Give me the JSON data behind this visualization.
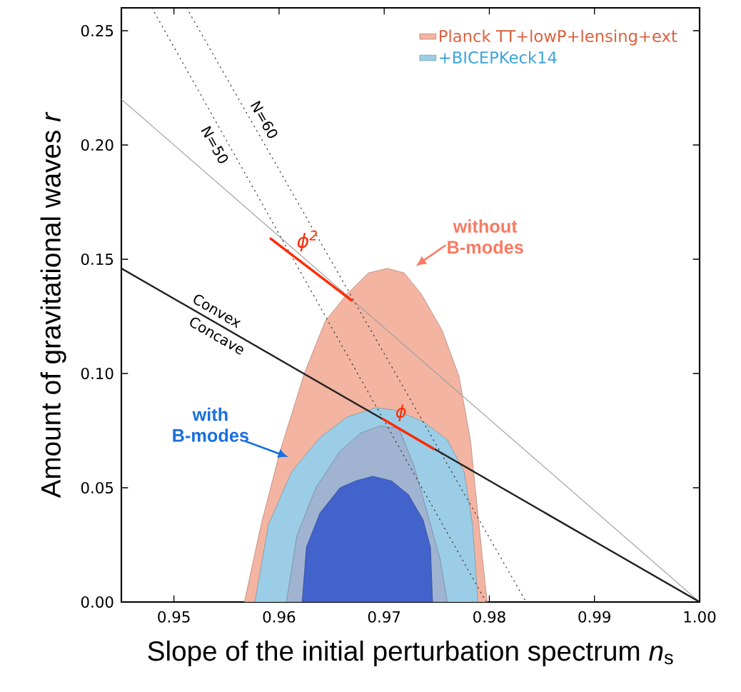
{
  "chart_data": {
    "type": "area",
    "xlabel": "Slope of the initial perturbation spectrum *n*$_{s}$",
    "ylabel": "Amount of gravitational waves *r*",
    "xlim": [
      0.945,
      1.0
    ],
    "ylim": [
      0,
      0.26
    ],
    "xticks": [
      0.95,
      0.96,
      0.97,
      0.98,
      0.99,
      {
        "value": 1.0,
        "label": "1.00"
      }
    ],
    "yticks": [
      {
        "value": 0,
        "label": "0.00"
      },
      0.05,
      {
        "value": 0.1,
        "label": "0.10"
      },
      0.15,
      {
        "value": 0.2,
        "label": "0.20"
      },
      0.25
    ],
    "legend": "top right",
    "series": [
      {
        "name": "Planck TT+lowP+lensing+ext",
        "color": "#f3b4a2",
        "x": [
          0.9567,
          0.9583,
          0.9601,
          0.9624,
          0.9644,
          0.9665,
          0.9685,
          0.9703,
          0.9719,
          0.9735,
          0.9755,
          0.9771,
          0.9782,
          0.9789,
          0.9796,
          0.9798
        ],
        "values": [
          0,
          0.034,
          0.066,
          0.1,
          0.123,
          0.135,
          0.144,
          0.146,
          0.144,
          0.135,
          0.119,
          0.099,
          0.071,
          0.039,
          0.008,
          0
        ]
      },
      {
        "name": "+BICEPKeck14",
        "color": "#9ccde6",
        "x": [
          0.9577,
          0.959,
          0.9612,
          0.9639,
          0.9665,
          0.9692,
          0.971,
          0.9737,
          0.976,
          0.9776,
          0.9784,
          0.9788,
          0.9789
        ],
        "values": [
          0,
          0.034,
          0.057,
          0.072,
          0.081,
          0.085,
          0.084,
          0.079,
          0.071,
          0.057,
          0.034,
          0.008,
          0
        ]
      },
      {
        "color": "#a0b4d2",
        "x": [
          0.9607,
          0.9617,
          0.9635,
          0.9658,
          0.9678,
          0.9696,
          0.9714,
          0.9728,
          0.9741,
          0.9753,
          0.976
        ],
        "values": [
          0,
          0.029,
          0.05,
          0.066,
          0.074,
          0.077,
          0.076,
          0.06,
          0.039,
          0.019,
          0
        ]
      },
      {
        "color": "#4263cc",
        "x": [
          0.9622,
          0.9626,
          0.9639,
          0.9658,
          0.9673,
          0.9689,
          0.9707,
          0.9723,
          0.9737,
          0.9744,
          0.9746
        ],
        "values": [
          0,
          0.024,
          0.039,
          0.05,
          0.053,
          0.055,
          0.053,
          0.047,
          0.036,
          0.024,
          0
        ]
      },
      {
        "type": "line",
        "color": "#a0a0a0",
        "line_style": "solid",
        "x": [
          0.945,
          1.0
        ],
        "values": [
          0.22,
          0
        ]
      },
      {
        "type": "line",
        "color": "#222222",
        "line_style": "solid",
        "x": [
          0.945,
          1.0
        ],
        "values": [
          0.146,
          0
        ]
      },
      {
        "type": "line",
        "color": "#333333",
        "line_style": "dotted",
        "x": [
          0.9479,
          0.9797
        ],
        "values": [
          0.26,
          0
        ]
      },
      {
        "type": "line",
        "color": "#333333",
        "line_style": "dotted",
        "x": [
          0.9512,
          0.9835
        ],
        "values": [
          0.26,
          0
        ]
      },
      {
        "type": "line",
        "color": "#ff2a00",
        "line_style": "solid",
        "x": [
          0.9592,
          0.9669
        ],
        "values": [
          0.159,
          0.132
        ]
      },
      {
        "type": "line",
        "color": "#ff2a00",
        "line_style": "solid",
        "x": [
          0.9699,
          0.9747
        ],
        "values": [
          0.08,
          0.067
        ]
      }
    ],
    "annotations": [
      "N=50",
      "N=60",
      "Convex",
      "Concave",
      "ϕ$^{2}$",
      {
        "text": "ϕ",
        "x": 0.9716,
        "y": 0.0828
      },
      "without B-modes",
      "with B-modes"
    ]
  }
}
